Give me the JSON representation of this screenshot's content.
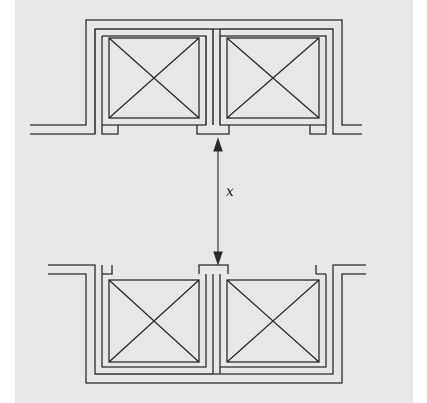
{
  "diagram": {
    "dimension_label": "x",
    "stroke_color": "#2a2a2a",
    "background_color": "#e8e7e8"
  }
}
